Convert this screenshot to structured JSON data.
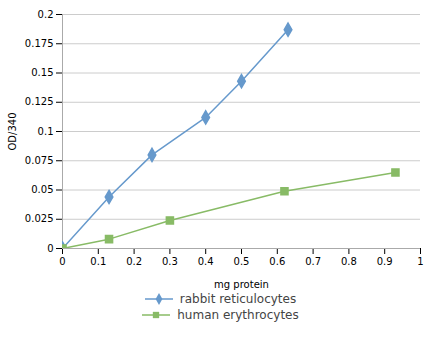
{
  "chart_data": {
    "type": "line",
    "xlabel": "mg protein",
    "ylabel": "OD/340",
    "xlim": [
      0,
      1.0
    ],
    "ylim": [
      0,
      0.2
    ],
    "xticks": [
      0,
      0.1,
      0.2,
      0.3,
      0.4,
      0.5,
      0.6,
      0.7,
      0.8,
      0.9,
      1.0
    ],
    "yticks": [
      0,
      0.025,
      0.05,
      0.075,
      0.1,
      0.125,
      0.15,
      0.175,
      0.2
    ],
    "grid": "y",
    "legend": "bottom",
    "series": [
      {
        "name": "rabbit reticulocytes",
        "color": "#6699CC",
        "marker": "diamond",
        "x": [
          0,
          0.13,
          0.25,
          0.4,
          0.5,
          0.63
        ],
        "values": [
          0,
          0.044,
          0.08,
          0.112,
          0.143,
          0.187
        ]
      },
      {
        "name": "human erythrocytes",
        "color": "#88BB66",
        "marker": "square",
        "x": [
          0,
          0.13,
          0.3,
          0.62,
          0.93
        ],
        "values": [
          0,
          0.008,
          0.024,
          0.049,
          0.065
        ]
      }
    ]
  }
}
